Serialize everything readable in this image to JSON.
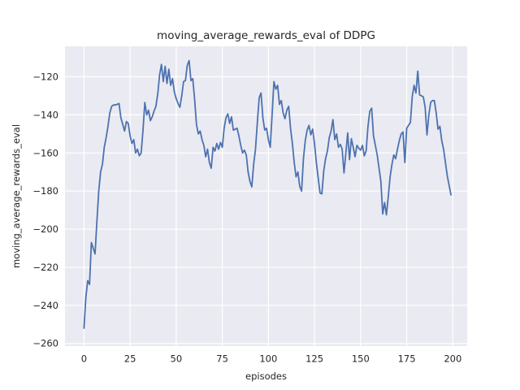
{
  "chart_data": {
    "type": "line",
    "title": "moving_average_rewards_eval of DDPG",
    "xlabel": "episodes",
    "ylabel": "moving_average_rewards_eval",
    "x_start": 0,
    "x_step": 1,
    "xlim": [
      -10.3,
      207.8
    ],
    "ylim": [
      -261.4,
      -104.0
    ],
    "xticks": [
      0,
      25,
      50,
      75,
      100,
      125,
      150,
      175,
      200
    ],
    "xtick_labels": [
      "0",
      "25",
      "50",
      "75",
      "100",
      "125",
      "150",
      "175",
      "200"
    ],
    "yticks": [
      -120,
      -140,
      -160,
      -180,
      -200,
      -220,
      -240,
      -260
    ],
    "ytick_labels": [
      "−120",
      "−140",
      "−160",
      "−180",
      "−200",
      "−220",
      "−240",
      "−260"
    ],
    "grid": true,
    "legend": null,
    "style": "seaborn-darkgrid",
    "colors": {
      "figure_background": "#ffffff",
      "axes_background": "#eaeaf2",
      "gridline": "#ffffff",
      "line": "#4c72b0",
      "text": "#262626"
    },
    "series": [
      {
        "name": "moving_average_rewards_eval",
        "values": [
          -252,
          -236,
          -227,
          -229,
          -207,
          -210,
          -213,
          -196,
          -180,
          -170,
          -166,
          -157,
          -152,
          -146,
          -139,
          -135.5,
          -134.8,
          -134.8,
          -134.5,
          -134,
          -141.5,
          -145,
          -148.5,
          -143.5,
          -144.5,
          -151,
          -155,
          -153,
          -160,
          -158,
          -161.5,
          -160,
          -148,
          -133.5,
          -140,
          -137.5,
          -143,
          -141,
          -138,
          -135.5,
          -129,
          -119,
          -113.5,
          -122.5,
          -114.5,
          -123.5,
          -116,
          -124.5,
          -121,
          -128,
          -131.5,
          -134,
          -136,
          -130,
          -122.5,
          -122,
          -114,
          -111.5,
          -122,
          -121,
          -132,
          -145,
          -150,
          -148.5,
          -153,
          -156,
          -162,
          -158,
          -165,
          -168,
          -157,
          -159,
          -155,
          -158,
          -154.5,
          -157,
          -147,
          -141.5,
          -139.5,
          -144.5,
          -141,
          -148,
          -147.5,
          -147,
          -151,
          -156,
          -160,
          -158.5,
          -161,
          -170,
          -175,
          -177.8,
          -166,
          -158,
          -144,
          -131,
          -128.5,
          -141.5,
          -148,
          -147,
          -153,
          -157,
          -140,
          -122.5,
          -126.5,
          -124.5,
          -134.5,
          -132.5,
          -139,
          -142,
          -137.5,
          -135.5,
          -147,
          -155,
          -165,
          -172.5,
          -170,
          -177.5,
          -180,
          -163,
          -153.5,
          -148,
          -145.5,
          -150.5,
          -147.5,
          -155,
          -165,
          -173,
          -181,
          -181.5,
          -169.5,
          -163,
          -159,
          -152,
          -148.5,
          -142.5,
          -153,
          -150,
          -157,
          -155.5,
          -158,
          -170.5,
          -160,
          -149.5,
          -163.5,
          -152.5,
          -157,
          -162,
          -156,
          -157.5,
          -158.5,
          -156,
          -161.5,
          -159,
          -146,
          -138,
          -136.5,
          -151,
          -156,
          -161,
          -168,
          -175,
          -192,
          -186,
          -192.5,
          -183,
          -172.5,
          -166,
          -161,
          -163,
          -158,
          -153.5,
          -150,
          -149,
          -165,
          -147,
          -145.5,
          -144,
          -130.5,
          -124.5,
          -128.5,
          -117,
          -129.5,
          -130,
          -130.5,
          -136,
          -150.5,
          -140,
          -133.5,
          -132.5,
          -132.5,
          -139,
          -147.5,
          -146,
          -153.5,
          -158,
          -165,
          -172,
          -177,
          -182
        ]
      }
    ]
  },
  "layout_note": "single matplotlib-style figure, no toolbar or window chrome visible"
}
